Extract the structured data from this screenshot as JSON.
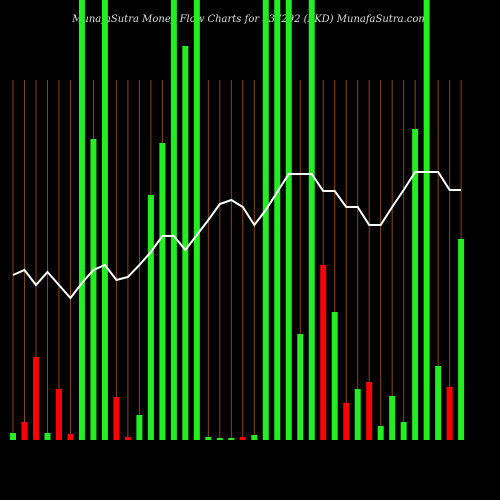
{
  "chart_data": {
    "type": "bar",
    "title": "MunafaSutra  Money Flow  Charts for 537292  (LKD) MunafaSutra.com",
    "categories": [
      null,
      null,
      null,
      null,
      null,
      null,
      null,
      null,
      null,
      null,
      null,
      null,
      null,
      null,
      null,
      null,
      null,
      null,
      null,
      null,
      null,
      null,
      null,
      null,
      null,
      null,
      null,
      null,
      null,
      null,
      null,
      null,
      null,
      null,
      null,
      null,
      null,
      null,
      null,
      null
    ],
    "values": [
      7,
      18,
      83,
      7,
      51,
      6,
      440,
      301,
      440,
      43,
      3,
      25,
      245,
      297,
      440,
      394,
      440,
      3,
      2,
      2,
      3,
      5,
      440,
      440,
      440,
      106,
      440,
      175,
      128,
      37,
      51,
      58,
      14,
      44,
      18,
      311,
      440,
      74,
      53,
      201
    ],
    "bar_colors": [
      "#22ee22",
      "#ff0000",
      "#ff0000",
      "#22ee22",
      "#ff0000",
      "#ff0000",
      "#22ee22",
      "#22ee22",
      "#22ee22",
      "#ff0000",
      "#ff0000",
      "#22ee22",
      "#22ee22",
      "#22ee22",
      "#22ee22",
      "#22ee22",
      "#22ee22",
      "#22ee22",
      "#22ee22",
      "#22ee22",
      "#ff0000",
      "#22ee22",
      "#22ee22",
      "#22ee22",
      "#22ee22",
      "#22ee22",
      "#22ee22",
      "#ff0000",
      "#22ee22",
      "#ff0000",
      "#22ee22",
      "#ff0000",
      "#22ee22",
      "#22ee22",
      "#22ee22",
      "#22ee22",
      "#22ee22",
      "#22ee22",
      "#ff0000",
      "#22ee22"
    ],
    "line_values": [
      165,
      170,
      155,
      168,
      155,
      142,
      157,
      170,
      175,
      160,
      163,
      175,
      188,
      204,
      204,
      190,
      205,
      220,
      236,
      240,
      233,
      215,
      230,
      248,
      266,
      266,
      266,
      249,
      249,
      233,
      233,
      215,
      215,
      233,
      250,
      268,
      268,
      268,
      250,
      250
    ],
    "line_color": "#ffffff",
    "ylim": [
      0,
      440
    ],
    "grid": true,
    "grid_color": "#8a4a0a"
  }
}
